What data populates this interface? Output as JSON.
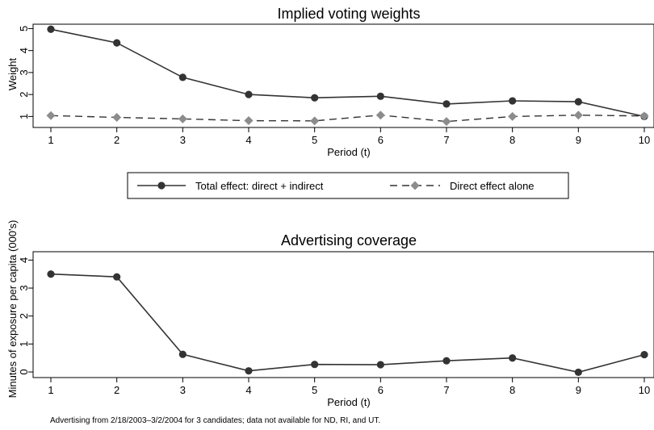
{
  "chart_data": [
    {
      "type": "line",
      "title": "Implied voting weights",
      "xlabel": "Period (t)",
      "ylabel": "Weight",
      "x": [
        1,
        2,
        3,
        4,
        5,
        6,
        7,
        8,
        9,
        10
      ],
      "xticks": [
        1,
        2,
        3,
        4,
        5,
        6,
        7,
        8,
        9,
        10
      ],
      "yticks": [
        1,
        2,
        3,
        4,
        5
      ],
      "xlim": [
        1,
        10
      ],
      "ylim": [
        0.5,
        5.2
      ],
      "grid": false,
      "series": [
        {
          "name": "Total effect: direct + indirect",
          "values": [
            4.97,
            4.35,
            2.78,
            2.0,
            1.85,
            1.92,
            1.57,
            1.71,
            1.67,
            1.0
          ],
          "style": "solid",
          "marker": "circle",
          "color": "#333333"
        },
        {
          "name": "Direct effect alone",
          "values": [
            1.04,
            0.96,
            0.89,
            0.81,
            0.8,
            1.06,
            0.77,
            1.0,
            1.06,
            1.02
          ],
          "style": "dashed",
          "marker": "diamond",
          "color": "#8c8c8c"
        }
      ]
    },
    {
      "type": "line",
      "title": "Advertising coverage",
      "xlabel": "Period (t)",
      "ylabel": "Minutes of exposure per capita (000's)",
      "x": [
        1,
        2,
        3,
        4,
        5,
        6,
        7,
        8,
        9,
        10
      ],
      "xticks": [
        1,
        2,
        3,
        4,
        5,
        6,
        7,
        8,
        9,
        10
      ],
      "yticks": [
        0,
        1,
        2,
        3,
        4
      ],
      "xlim": [
        1,
        10
      ],
      "ylim": [
        -0.2,
        4.3
      ],
      "grid": false,
      "series": [
        {
          "values": [
            3.5,
            3.4,
            0.63,
            0.04,
            0.27,
            0.26,
            0.4,
            0.5,
            -0.01,
            0.62
          ],
          "style": "solid",
          "marker": "circle",
          "color": "#333333"
        }
      ]
    }
  ],
  "legend": {
    "placement": "between panels",
    "items": [
      {
        "label": "Total effect: direct + indirect",
        "style": "solid",
        "marker": "circle"
      },
      {
        "label": "Direct effect alone",
        "style": "dashed",
        "marker": "diamond"
      }
    ]
  },
  "note": "Advertising from 2/18/2003–3/2/2004 for 3 candidates; data not available for ND, RI, and UT."
}
